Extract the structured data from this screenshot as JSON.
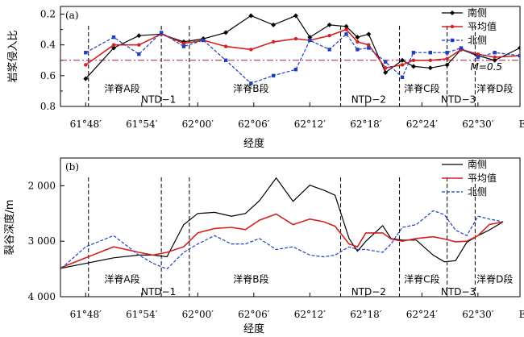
{
  "chart_data": [
    {
      "panel": "(a)",
      "type": "line",
      "ylabel": "岩浆侵入比",
      "xlabel": "经度",
      "y_reversed": true,
      "ylim": [
        0.15,
        0.8
      ],
      "yticks": [
        0.2,
        0.4,
        0.6,
        0.8
      ],
      "yticklabels": [
        "0.2",
        "0.4",
        "0.6",
        "0.8"
      ],
      "xlim": [
        61.755,
        62.575
      ],
      "xticks": [
        61.8,
        61.9,
        62.0,
        62.1,
        62.2,
        62.3,
        62.4,
        62.5
      ],
      "xticklabels": [
        "61°48′",
        "61°54′",
        "62°00′",
        "62°06′",
        "62°12′",
        "62°18′",
        "62°24′",
        "62°30′"
      ],
      "x_edge_label": "E",
      "legend": {
        "position": "top-right",
        "entries": [
          "南侧",
          "平均值",
          "北侧"
        ]
      },
      "series": [
        {
          "name": "南侧",
          "color": "#000000",
          "style": "solid",
          "marker": "diamond",
          "x": [
            61.8,
            61.85,
            61.895,
            61.935,
            61.975,
            62.01,
            62.05,
            62.095,
            62.135,
            62.175,
            62.2,
            62.235,
            62.265,
            62.285,
            62.305,
            62.335,
            62.365,
            62.385,
            62.415,
            62.445,
            62.47,
            62.5,
            62.53,
            62.575
          ],
          "y": [
            0.62,
            0.42,
            0.34,
            0.33,
            0.38,
            0.36,
            0.32,
            0.21,
            0.27,
            0.21,
            0.35,
            0.27,
            0.28,
            0.35,
            0.33,
            0.58,
            0.5,
            0.54,
            0.55,
            0.53,
            0.43,
            0.47,
            0.5,
            0.42
          ]
        },
        {
          "name": "平均值",
          "color": "#d42020",
          "style": "solid",
          "marker": "circle",
          "x": [
            61.8,
            61.85,
            61.895,
            61.935,
            61.975,
            62.01,
            62.05,
            62.095,
            62.135,
            62.175,
            62.2,
            62.235,
            62.265,
            62.285,
            62.305,
            62.335,
            62.365,
            62.385,
            62.415,
            62.445,
            62.47,
            62.5,
            62.53,
            62.575
          ],
          "y": [
            0.53,
            0.4,
            0.4,
            0.33,
            0.39,
            0.37,
            0.41,
            0.43,
            0.38,
            0.36,
            0.37,
            0.34,
            0.3,
            0.38,
            0.4,
            0.55,
            0.53,
            0.5,
            0.5,
            0.49,
            0.43,
            0.46,
            0.48,
            0.47
          ]
        },
        {
          "name": "北侧",
          "color": "#1f3fbf",
          "style": "dashed",
          "marker": "square",
          "x": [
            61.8,
            61.85,
            61.895,
            61.935,
            61.975,
            62.01,
            62.05,
            62.095,
            62.135,
            62.175,
            62.2,
            62.235,
            62.265,
            62.285,
            62.305,
            62.335,
            62.365,
            62.385,
            62.415,
            62.445,
            62.47,
            62.5,
            62.53,
            62.575
          ],
          "y": [
            0.45,
            0.35,
            0.46,
            0.32,
            0.41,
            0.37,
            0.5,
            0.65,
            0.6,
            0.56,
            0.37,
            0.43,
            0.33,
            0.43,
            0.42,
            0.51,
            0.61,
            0.45,
            0.45,
            0.45,
            0.42,
            0.48,
            0.45,
            0.47
          ]
        }
      ],
      "reference_line": {
        "y": 0.5,
        "label": "M=0.5",
        "color": "#a01a5a"
      },
      "dividers": [
        61.805,
        61.935,
        61.985,
        62.255,
        62.36,
        62.445,
        62.495
      ],
      "segment_labels": [
        {
          "text": "洋脊A段",
          "x": 61.865,
          "y": 0.685
        },
        {
          "text": "NTD−1",
          "x": 61.93,
          "y": 0.755
        },
        {
          "text": "洋脊B段",
          "x": 62.095,
          "y": 0.685
        },
        {
          "text": "NTD−2",
          "x": 62.305,
          "y": 0.755
        },
        {
          "text": "洋脊C段",
          "x": 62.4,
          "y": 0.685
        },
        {
          "text": "NTD−3",
          "x": 62.465,
          "y": 0.755
        },
        {
          "text": "洋脊D段",
          "x": 62.53,
          "y": 0.685
        }
      ]
    },
    {
      "panel": "(b)",
      "type": "line",
      "ylabel": "裂谷深度/m",
      "xlabel": "经度",
      "y_reversed": true,
      "ylim": [
        1500,
        4000
      ],
      "yticks": [
        2000,
        3000,
        4000
      ],
      "yticklabels": [
        "2 000",
        "3 000",
        "4 000"
      ],
      "xlim": [
        61.755,
        62.575
      ],
      "xticks": [
        61.8,
        61.9,
        62.0,
        62.1,
        62.2,
        62.3,
        62.4,
        62.5
      ],
      "xticklabels": [
        "61°48′",
        "61°54′",
        "62°00′",
        "62°06′",
        "62°12′",
        "62°18′",
        "62°24′",
        "62°30′"
      ],
      "x_edge_label": "E",
      "legend": {
        "position": "top-right",
        "entries": [
          "南侧",
          "平均值",
          "北侧"
        ]
      },
      "series": [
        {
          "name": "南侧",
          "color": "#000000",
          "style": "solid",
          "x": [
            61.75,
            61.8,
            61.85,
            61.895,
            61.92,
            61.945,
            61.975,
            62.0,
            62.03,
            62.06,
            62.085,
            62.11,
            62.14,
            62.17,
            62.2,
            62.225,
            62.245,
            62.27,
            62.285,
            62.3,
            62.33,
            62.345,
            62.365,
            62.39,
            62.42,
            62.44,
            62.46,
            62.48,
            62.5,
            62.52,
            62.545
          ],
          "y": [
            3500,
            3400,
            3300,
            3250,
            3250,
            3280,
            2700,
            2500,
            2480,
            2550,
            2500,
            2270,
            1860,
            2280,
            1990,
            2080,
            2170,
            2950,
            3180,
            3000,
            2720,
            2950,
            2980,
            2980,
            3250,
            3370,
            3350,
            3020,
            2900,
            2800,
            2650
          ]
        },
        {
          "name": "平均值",
          "color": "#d42020",
          "style": "solid",
          "x": [
            61.75,
            61.8,
            61.85,
            61.895,
            61.92,
            61.945,
            61.975,
            62.0,
            62.03,
            62.06,
            62.085,
            62.11,
            62.14,
            62.17,
            62.2,
            62.225,
            62.245,
            62.27,
            62.285,
            62.3,
            62.33,
            62.345,
            62.365,
            62.39,
            62.42,
            62.44,
            62.46,
            62.48,
            62.5,
            62.52,
            62.545
          ],
          "y": [
            3500,
            3300,
            3100,
            3200,
            3250,
            3200,
            3100,
            2850,
            2770,
            2750,
            2790,
            2620,
            2510,
            2700,
            2600,
            2650,
            2730,
            3050,
            3100,
            2850,
            2850,
            2960,
            3000,
            2950,
            2920,
            2960,
            3010,
            3000,
            2900,
            2700,
            2650
          ]
        },
        {
          "name": "北侧",
          "color": "#1f3fbf",
          "style": "dashed",
          "x": [
            61.75,
            61.8,
            61.85,
            61.895,
            61.92,
            61.945,
            61.975,
            62.0,
            62.03,
            62.06,
            62.085,
            62.11,
            62.14,
            62.17,
            62.2,
            62.225,
            62.245,
            62.27,
            62.285,
            62.3,
            62.33,
            62.345,
            62.365,
            62.39,
            62.42,
            62.44,
            62.46,
            62.48,
            62.5,
            62.52,
            62.545
          ],
          "y": [
            3550,
            3100,
            2900,
            3250,
            3400,
            3500,
            3200,
            3050,
            2900,
            3050,
            3050,
            2950,
            3150,
            3100,
            3250,
            3280,
            3250,
            3100,
            3150,
            3150,
            3200,
            3050,
            2750,
            2700,
            2450,
            2520,
            2800,
            2900,
            2550,
            2600,
            2650
          ]
        }
      ],
      "dividers": [
        61.805,
        61.935,
        61.985,
        62.255,
        62.36,
        62.445,
        62.495
      ],
      "segment_labels": [
        {
          "text": "洋脊A段",
          "x": 61.865,
          "y": 3690
        },
        {
          "text": "NTD−1",
          "x": 61.93,
          "y": 3910
        },
        {
          "text": "洋脊B段",
          "x": 62.095,
          "y": 3690
        },
        {
          "text": "NTD−2",
          "x": 62.305,
          "y": 3910
        },
        {
          "text": "洋脊C段",
          "x": 62.4,
          "y": 3690
        },
        {
          "text": "NTD−3",
          "x": 62.465,
          "y": 3910
        },
        {
          "text": "洋脊D段",
          "x": 62.53,
          "y": 3690
        }
      ]
    }
  ]
}
